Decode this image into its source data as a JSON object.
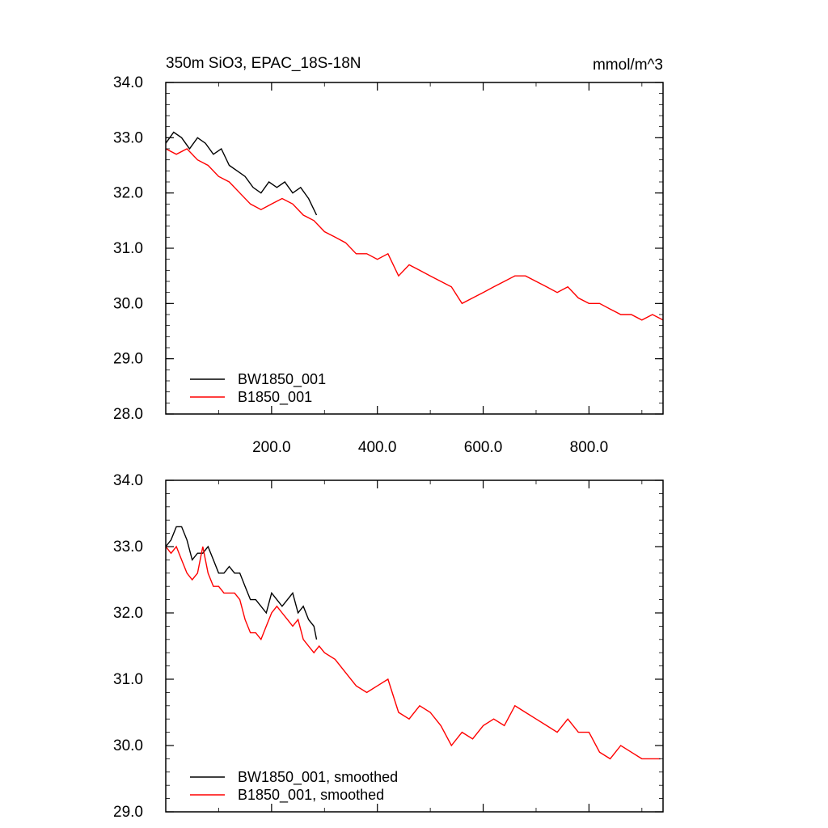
{
  "chart_data": [
    {
      "type": "line",
      "title": "350m SiO3, EPAC_18S-18N",
      "units": "mmol/m^3",
      "xlim": [
        0,
        940
      ],
      "ylim": [
        28.0,
        34.0
      ],
      "xticks": [
        200,
        400,
        600,
        800
      ],
      "xtick_labels": [
        "200.0",
        "400.0",
        "600.0",
        "800.0"
      ],
      "yticks": [
        28,
        29,
        30,
        31,
        32,
        33,
        34
      ],
      "ytick_labels": [
        "28.0",
        "29.0",
        "30.0",
        "31.0",
        "32.0",
        "33.0",
        "34.0"
      ],
      "legend_position": "bottom-left",
      "series": [
        {
          "name": "BW1850_001",
          "color": "#000000",
          "x": [
            0,
            15,
            30,
            45,
            60,
            75,
            90,
            105,
            120,
            135,
            150,
            165,
            180,
            195,
            210,
            225,
            240,
            255,
            270,
            285
          ],
          "y": [
            32.9,
            33.1,
            33.0,
            32.8,
            33.0,
            32.9,
            32.7,
            32.8,
            32.5,
            32.4,
            32.3,
            32.1,
            32.0,
            32.2,
            32.1,
            32.2,
            32.0,
            32.1,
            31.9,
            31.6
          ]
        },
        {
          "name": "B1850_001",
          "color": "#ff0000",
          "x": [
            0,
            20,
            40,
            60,
            80,
            100,
            120,
            140,
            160,
            180,
            200,
            220,
            240,
            260,
            280,
            300,
            320,
            340,
            360,
            380,
            400,
            420,
            440,
            460,
            480,
            500,
            520,
            540,
            560,
            580,
            600,
            620,
            640,
            660,
            680,
            700,
            720,
            740,
            760,
            780,
            800,
            820,
            840,
            860,
            880,
            900,
            920,
            940
          ],
          "y": [
            32.8,
            32.7,
            32.8,
            32.6,
            32.5,
            32.3,
            32.2,
            32.0,
            31.8,
            31.7,
            31.8,
            31.9,
            31.8,
            31.6,
            31.5,
            31.3,
            31.2,
            31.1,
            30.9,
            30.9,
            30.8,
            30.9,
            30.5,
            30.7,
            30.6,
            30.5,
            30.4,
            30.3,
            30.0,
            30.1,
            30.2,
            30.3,
            30.4,
            30.5,
            30.5,
            30.4,
            30.3,
            30.2,
            30.3,
            30.1,
            30.0,
            30.0,
            29.9,
            29.8,
            29.8,
            29.7,
            29.8,
            29.7
          ]
        }
      ]
    },
    {
      "type": "line",
      "xlim": [
        0,
        940
      ],
      "ylim": [
        29.0,
        34.0
      ],
      "yticks": [
        29,
        30,
        31,
        32,
        33,
        34
      ],
      "ytick_labels": [
        "29.0",
        "30.0",
        "31.0",
        "32.0",
        "33.0",
        "34.0"
      ],
      "legend_position": "bottom-left",
      "series": [
        {
          "name": "BW1850_001, smoothed",
          "color": "#000000",
          "x": [
            0,
            10,
            20,
            30,
            40,
            50,
            60,
            70,
            80,
            90,
            100,
            110,
            120,
            130,
            140,
            150,
            160,
            170,
            180,
            190,
            200,
            210,
            220,
            230,
            240,
            250,
            260,
            270,
            280,
            285
          ],
          "y": [
            33.0,
            33.1,
            33.3,
            33.3,
            33.1,
            32.8,
            32.9,
            32.9,
            33.0,
            32.8,
            32.6,
            32.6,
            32.7,
            32.6,
            32.6,
            32.4,
            32.2,
            32.2,
            32.1,
            32.0,
            32.3,
            32.2,
            32.1,
            32.2,
            32.3,
            32.0,
            32.1,
            31.9,
            31.8,
            31.6
          ]
        },
        {
          "name": "B1850_001, smoothed",
          "color": "#ff0000",
          "x": [
            0,
            10,
            20,
            30,
            40,
            50,
            60,
            70,
            80,
            90,
            100,
            110,
            120,
            130,
            140,
            150,
            160,
            170,
            180,
            190,
            200,
            210,
            220,
            230,
            240,
            250,
            260,
            270,
            280,
            290,
            300,
            320,
            340,
            360,
            380,
            400,
            420,
            440,
            460,
            480,
            500,
            520,
            540,
            560,
            580,
            600,
            620,
            640,
            660,
            680,
            700,
            720,
            740,
            760,
            780,
            800,
            820,
            840,
            860,
            880,
            900,
            920,
            935
          ],
          "y": [
            33.0,
            32.9,
            33.0,
            32.8,
            32.6,
            32.5,
            32.6,
            33.0,
            32.6,
            32.4,
            32.4,
            32.3,
            32.3,
            32.3,
            32.2,
            31.9,
            31.7,
            31.7,
            31.6,
            31.8,
            32.0,
            32.1,
            32.0,
            31.9,
            31.8,
            31.9,
            31.6,
            31.5,
            31.4,
            31.5,
            31.4,
            31.3,
            31.1,
            30.9,
            30.8,
            30.9,
            31.0,
            30.5,
            30.4,
            30.6,
            30.5,
            30.3,
            30.0,
            30.2,
            30.1,
            30.3,
            30.4,
            30.3,
            30.6,
            30.5,
            30.4,
            30.3,
            30.2,
            30.4,
            30.2,
            30.2,
            29.9,
            29.8,
            30.0,
            29.9,
            29.8,
            29.8,
            29.8
          ]
        }
      ]
    }
  ]
}
